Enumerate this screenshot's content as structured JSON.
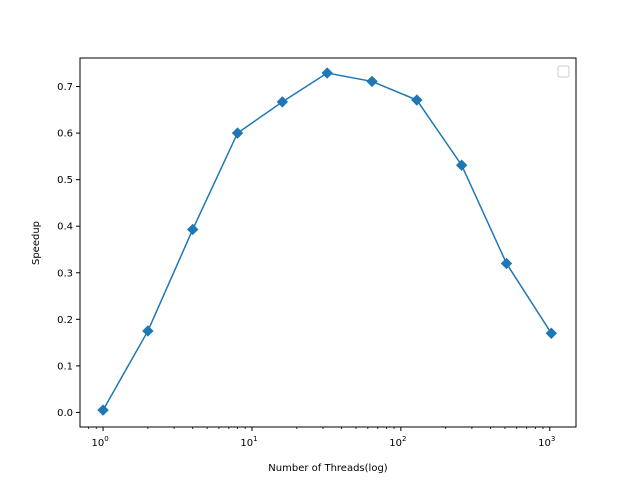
{
  "chart_data": {
    "type": "line",
    "title": "",
    "xlabel": "Number of Threads(log)",
    "ylabel": "Speedup",
    "xscale": "log",
    "xlim": [
      0.7,
      1500
    ],
    "ylim": [
      -0.0313,
      0.7613
    ],
    "grid": false,
    "legend": "top-right (empty box)",
    "marker": "diamond",
    "color": "#1f77b4",
    "x_ticks": [
      {
        "base": "10",
        "exp": "0",
        "value": 1
      },
      {
        "base": "10",
        "exp": "1",
        "value": 10
      },
      {
        "base": "10",
        "exp": "2",
        "value": 100
      },
      {
        "base": "10",
        "exp": "3",
        "value": 1000
      }
    ],
    "y_ticks": [
      "0.0",
      "0.1",
      "0.2",
      "0.3",
      "0.4",
      "0.5",
      "0.6",
      "0.7"
    ],
    "x": [
      1,
      2,
      4,
      8,
      16,
      32,
      64,
      128,
      256,
      512,
      1024
    ],
    "series": [
      {
        "values": [
          0.005,
          0.175,
          0.393,
          0.6,
          0.667,
          0.729,
          0.711,
          0.671,
          0.531,
          0.32,
          0.17
        ]
      }
    ]
  }
}
